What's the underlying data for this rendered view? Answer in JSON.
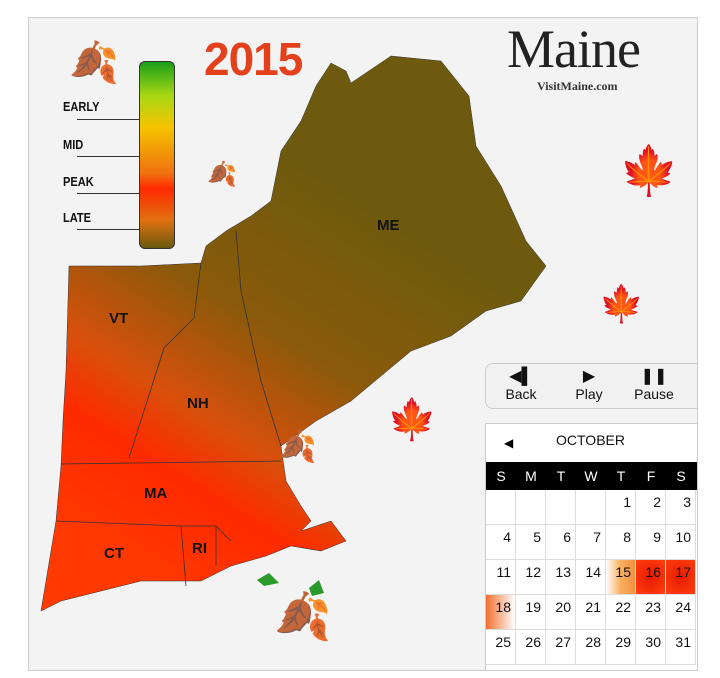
{
  "year": "2015",
  "logo": {
    "title": "Maine",
    "subtitle": "VisitMaine.com"
  },
  "legend": {
    "labels": [
      "EARLY",
      "MID",
      "PEAK",
      "LATE"
    ],
    "colors": [
      "#1a9e1a",
      "#f5c400",
      "#ff2a00",
      "#6b5a10"
    ]
  },
  "states": [
    "ME",
    "VT",
    "NH",
    "MA",
    "CT",
    "RI"
  ],
  "controls": [
    {
      "label": "Back",
      "icon": "back-icon"
    },
    {
      "label": "Play",
      "icon": "play-icon"
    },
    {
      "label": "Pause",
      "icon": "pause-icon"
    }
  ],
  "calendar": {
    "month": "OCTOBER",
    "weekdays": [
      "S",
      "M",
      "T",
      "W",
      "T",
      "F",
      "S"
    ],
    "start_offset": 4,
    "days": 31,
    "highlights": {
      "15": "mid",
      "16": "peak",
      "17": "peak",
      "18": "late"
    }
  }
}
